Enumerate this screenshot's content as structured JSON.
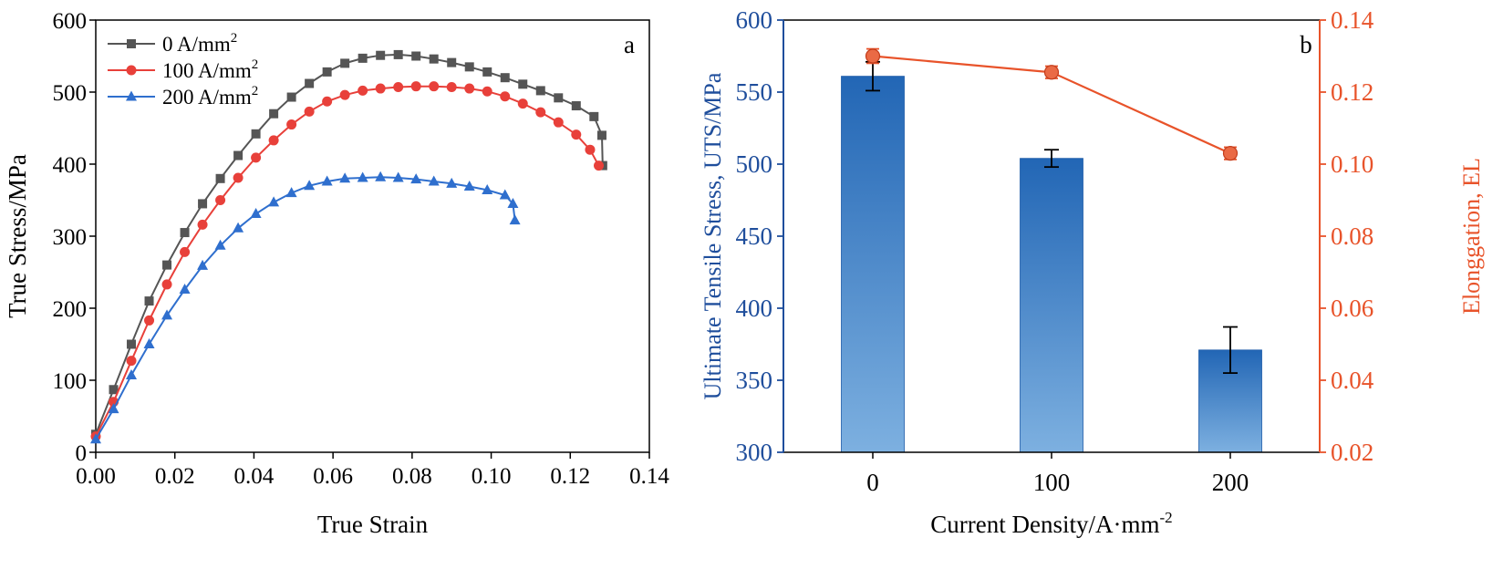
{
  "chart_data": [
    {
      "type": "line",
      "panel_label": "a",
      "xlabel": "True Strain",
      "ylabel": "True Stress/MPa",
      "xlim": [
        0.0,
        0.14
      ],
      "ylim": [
        0,
        600
      ],
      "xticks": [
        "0.00",
        "0.02",
        "0.04",
        "0.06",
        "0.08",
        "0.10",
        "0.12",
        "0.14"
      ],
      "yticks": [
        "0",
        "100",
        "200",
        "300",
        "400",
        "500",
        "600"
      ],
      "legend_position": "top-left",
      "series": [
        {
          "name": "0 A/mm",
          "name_sup": "2",
          "color": "#555555",
          "marker": "square",
          "x": [
            0.0,
            0.0045,
            0.009,
            0.0135,
            0.018,
            0.0225,
            0.027,
            0.0315,
            0.036,
            0.0405,
            0.045,
            0.0495,
            0.054,
            0.0585,
            0.063,
            0.0675,
            0.072,
            0.0765,
            0.081,
            0.0855,
            0.09,
            0.0945,
            0.099,
            0.1035,
            0.108,
            0.1125,
            0.117,
            0.1215,
            0.126,
            0.128,
            0.1282
          ],
          "y": [
            25,
            87,
            150,
            210,
            260,
            305,
            345,
            380,
            412,
            442,
            470,
            493,
            512,
            528,
            540,
            547,
            551,
            552,
            550,
            546,
            541,
            535,
            528,
            520,
            511,
            502,
            492,
            481,
            466,
            440,
            398
          ]
        },
        {
          "name": "100 A/mm",
          "name_sup": "2",
          "color": "#e8403a",
          "marker": "circle",
          "x": [
            0.0,
            0.0045,
            0.009,
            0.0135,
            0.018,
            0.0225,
            0.027,
            0.0315,
            0.036,
            0.0405,
            0.045,
            0.0495,
            0.054,
            0.0585,
            0.063,
            0.0675,
            0.072,
            0.0765,
            0.081,
            0.0855,
            0.09,
            0.0945,
            0.099,
            0.1035,
            0.108,
            0.1125,
            0.117,
            0.1215,
            0.125,
            0.1272
          ],
          "y": [
            22,
            70,
            127,
            183,
            233,
            278,
            316,
            350,
            381,
            409,
            433,
            455,
            473,
            487,
            496,
            502,
            505,
            507,
            508,
            508,
            507,
            505,
            501,
            494,
            484,
            472,
            458,
            441,
            420,
            398
          ]
        },
        {
          "name": "200 A/mm",
          "name_sup": "2",
          "color": "#2f6fce",
          "marker": "triangle",
          "x": [
            0.0,
            0.0045,
            0.009,
            0.0135,
            0.018,
            0.0225,
            0.027,
            0.0315,
            0.036,
            0.0405,
            0.045,
            0.0495,
            0.054,
            0.0585,
            0.063,
            0.0675,
            0.072,
            0.0765,
            0.081,
            0.0855,
            0.09,
            0.0945,
            0.099,
            0.1035,
            0.1055,
            0.106
          ],
          "y": [
            18,
            60,
            107,
            150,
            190,
            226,
            259,
            287,
            311,
            331,
            347,
            360,
            370,
            376,
            380,
            381,
            382,
            381,
            379,
            376,
            373,
            369,
            364,
            357,
            345,
            322
          ]
        }
      ]
    },
    {
      "type": "bar",
      "panel_label": "b",
      "xlabel": "Current Density/A·mm",
      "xlabel_sup": "-2",
      "ylabel": "Ultimate Tensile Stress, UTS/MPa",
      "y2label": "Elonggation, EL",
      "categories": [
        "0",
        "100",
        "200"
      ],
      "ylim": [
        300,
        600
      ],
      "y2lim": [
        0.02,
        0.14
      ],
      "yticks": [
        "300",
        "350",
        "400",
        "450",
        "500",
        "550",
        "600"
      ],
      "y2ticks": [
        "0.02",
        "0.04",
        "0.06",
        "0.08",
        "0.10",
        "0.12",
        "0.14"
      ],
      "bar_color_top": "#2266b5",
      "bar_color_bottom": "#7db0e0",
      "left_axis_color": "#1f4e9c",
      "right_axis_color": "#e8532a",
      "series": [
        {
          "kind": "bar",
          "axis": "left",
          "values": [
            561,
            504,
            371
          ],
          "errors": [
            10,
            6,
            16
          ]
        },
        {
          "kind": "line",
          "axis": "right",
          "values": [
            0.13,
            0.1255,
            0.103
          ],
          "errors": [
            0.002,
            0.0017,
            0.0017
          ]
        }
      ]
    }
  ]
}
